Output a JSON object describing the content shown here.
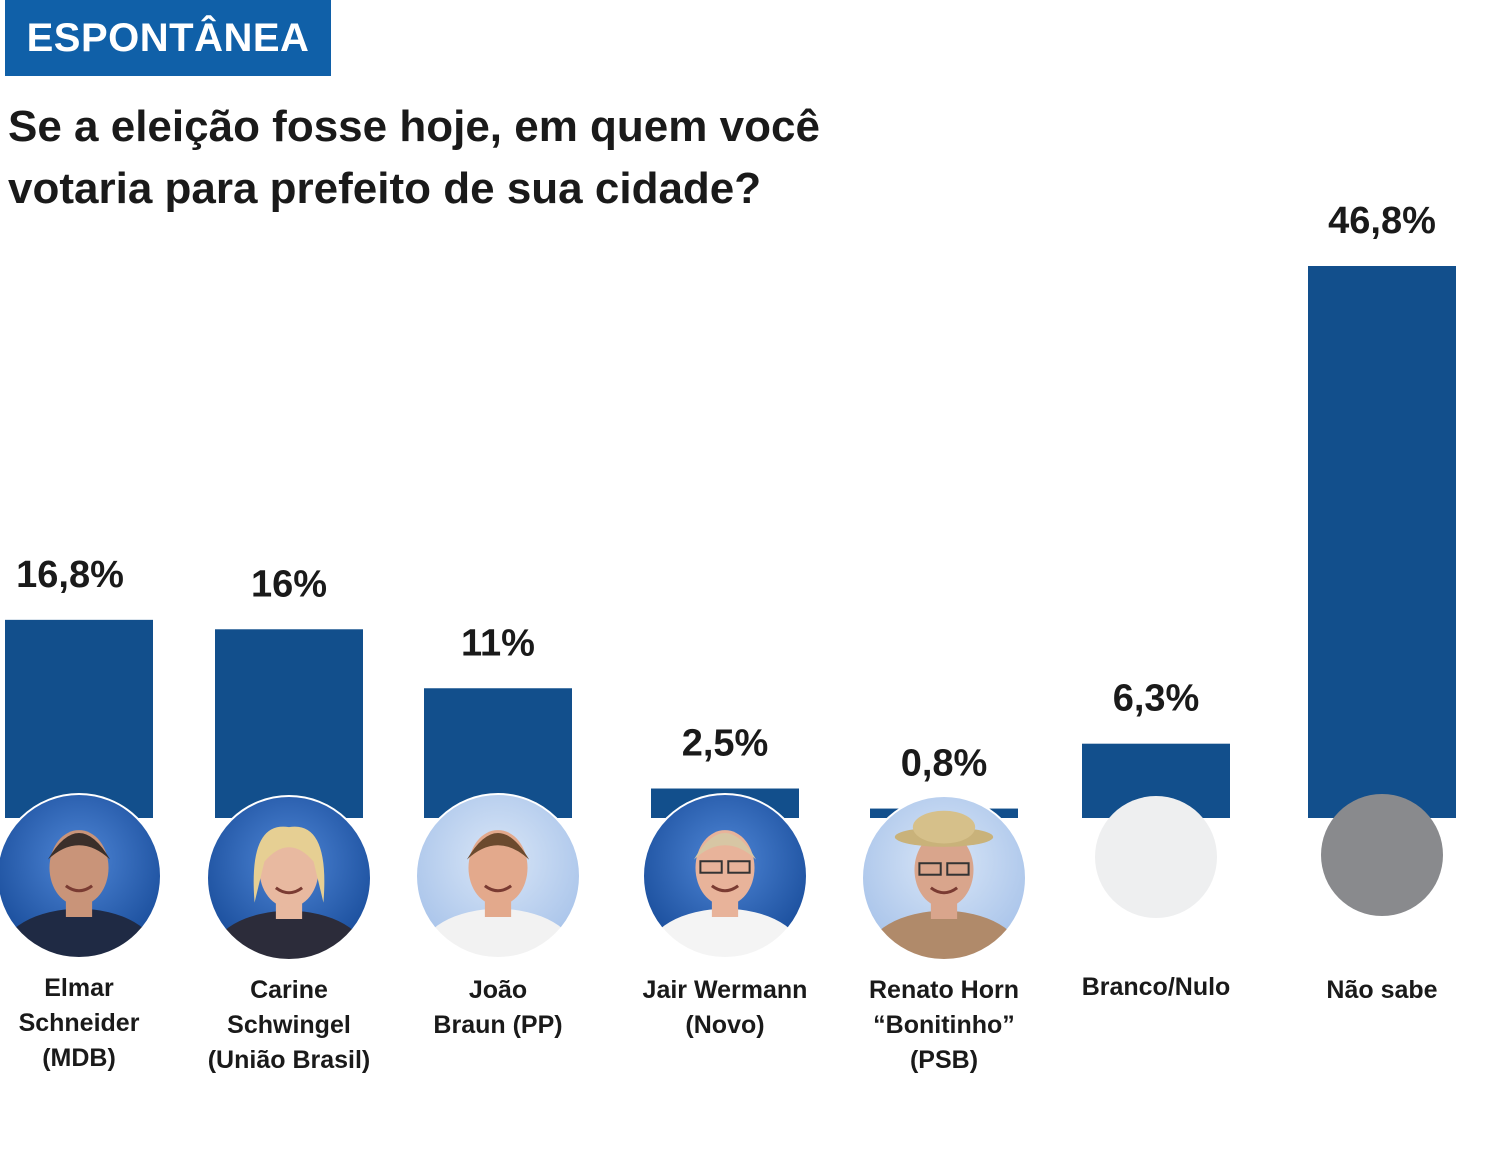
{
  "tag": {
    "label": "ESPONTÂNEA"
  },
  "title": "Se a eleição fosse hoje, em quem você votaria para prefeito de sua cidade?",
  "colors": {
    "bar": "#124f8c",
    "tag": "#1060a8",
    "photo_ring": "#1a4e9c",
    "branco": "#eeeff0",
    "nao_sabe": "#898a8d"
  },
  "chart_data": {
    "type": "bar",
    "title": "Se a eleição fosse hoje, em quem você votaria para prefeito de sua cidade?",
    "categories": [
      "Elmar\nSchneider\n(MDB)",
      "Carine\nSchwingel\n(União Brasil)",
      "João\nBraun (PP)",
      "Jair Wermann\n(Novo)",
      "Renato Horn\n“Bonitinho”\n(PSB)",
      "Branco/Nulo",
      "Não sabe"
    ],
    "values": [
      16.8,
      16,
      11,
      2.5,
      0.8,
      6.3,
      46.8
    ],
    "value_labels": [
      "16,8%",
      "16%",
      "11%",
      "2,5%",
      "0,8%",
      "6,3%",
      "46,8%"
    ],
    "markers": [
      "person-photo",
      "person-photo",
      "person-photo",
      "person-photo",
      "person-photo",
      "light-gray-circle",
      "gray-circle"
    ],
    "ylim": [
      0,
      46.8
    ],
    "grid": false,
    "legend": "none"
  }
}
